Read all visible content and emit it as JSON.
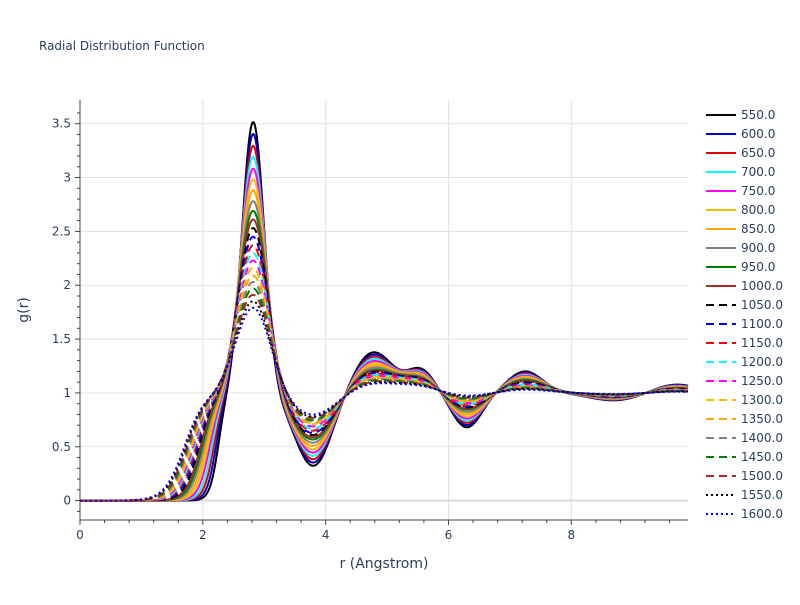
{
  "chart_data": {
    "type": "line",
    "title": "Radial Distribution Function",
    "xlabel": "r (Angstrom)",
    "ylabel": "g(r)",
    "xlim": [
      0,
      9.9
    ],
    "ylim": [
      -0.18,
      3.72
    ],
    "xticks": [
      0,
      2,
      4,
      6,
      8
    ],
    "xtick_labels": [
      "0",
      "2",
      "4",
      "6",
      "8"
    ],
    "yticks": [
      0,
      0.5,
      1,
      1.5,
      2,
      2.5,
      3,
      3.5
    ],
    "ytick_labels": [
      "0",
      "0.5",
      "1",
      "1.5",
      "2",
      "2.5",
      "3",
      "3.5"
    ],
    "grid": true,
    "legend_position": "right",
    "series": [
      {
        "name": "550.0",
        "color": "#000000",
        "dash": "solid",
        "peak1": 3.52,
        "min1": 0.32,
        "peak2": 1.38,
        "min2": 0.68,
        "peak3": 1.2
      },
      {
        "name": "600.0",
        "color": "#0000cc",
        "dash": "solid",
        "peak1": 3.41,
        "min1": 0.35,
        "peak2": 1.36,
        "min2": 0.7,
        "peak3": 1.19
      },
      {
        "name": "650.0",
        "color": "#e00000",
        "dash": "solid",
        "peak1": 3.3,
        "min1": 0.38,
        "peak2": 1.34,
        "min2": 0.72,
        "peak3": 1.18
      },
      {
        "name": "700.0",
        "color": "#00ffff",
        "dash": "solid",
        "peak1": 3.2,
        "min1": 0.41,
        "peak2": 1.32,
        "min2": 0.74,
        "peak3": 1.17
      },
      {
        "name": "750.0",
        "color": "#ff00ff",
        "dash": "solid",
        "peak1": 3.09,
        "min1": 0.44,
        "peak2": 1.3,
        "min2": 0.76,
        "peak3": 1.16
      },
      {
        "name": "800.0",
        "color": "#f0c000",
        "dash": "solid",
        "peak1": 2.99,
        "min1": 0.47,
        "peak2": 1.28,
        "min2": 0.78,
        "peak3": 1.15
      },
      {
        "name": "850.0",
        "color": "#ffa500",
        "dash": "solid",
        "peak1": 2.89,
        "min1": 0.5,
        "peak2": 1.26,
        "min2": 0.8,
        "peak3": 1.14
      },
      {
        "name": "900.0",
        "color": "#808080",
        "dash": "solid",
        "peak1": 2.79,
        "min1": 0.53,
        "peak2": 1.24,
        "min2": 0.82,
        "peak3": 1.13
      },
      {
        "name": "950.0",
        "color": "#008000",
        "dash": "solid",
        "peak1": 2.7,
        "min1": 0.56,
        "peak2": 1.22,
        "min2": 0.84,
        "peak3": 1.12
      },
      {
        "name": "1000.0",
        "color": "#a52a2a",
        "dash": "solid",
        "peak1": 2.62,
        "min1": 0.58,
        "peak2": 1.21,
        "min2": 0.85,
        "peak3": 1.11
      },
      {
        "name": "1050.0",
        "color": "#000000",
        "dash": "dash",
        "peak1": 2.54,
        "min1": 0.6,
        "peak2": 1.2,
        "min2": 0.86,
        "peak3": 1.1
      },
      {
        "name": "1100.0",
        "color": "#0000ff",
        "dash": "dash",
        "peak1": 2.46,
        "min1": 0.62,
        "peak2": 1.19,
        "min2": 0.87,
        "peak3": 1.09
      },
      {
        "name": "1150.0",
        "color": "#ff0000",
        "dash": "dash",
        "peak1": 2.38,
        "min1": 0.64,
        "peak2": 1.18,
        "min2": 0.88,
        "peak3": 1.08
      },
      {
        "name": "1200.0",
        "color": "#00ffff",
        "dash": "dash",
        "peak1": 2.31,
        "min1": 0.66,
        "peak2": 1.17,
        "min2": 0.89,
        "peak3": 1.08
      },
      {
        "name": "1250.0",
        "color": "#ff00ff",
        "dash": "dash",
        "peak1": 2.24,
        "min1": 0.68,
        "peak2": 1.16,
        "min2": 0.9,
        "peak3": 1.07
      },
      {
        "name": "1300.0",
        "color": "#f0c000",
        "dash": "dash",
        "peak1": 2.17,
        "min1": 0.7,
        "peak2": 1.15,
        "min2": 0.91,
        "peak3": 1.06
      },
      {
        "name": "1350.0",
        "color": "#ffa500",
        "dash": "dash",
        "peak1": 2.1,
        "min1": 0.71,
        "peak2": 1.14,
        "min2": 0.92,
        "peak3": 1.06
      },
      {
        "name": "1400.0",
        "color": "#808080",
        "dash": "dash",
        "peak1": 2.04,
        "min1": 0.73,
        "peak2": 1.13,
        "min2": 0.93,
        "peak3": 1.05
      },
      {
        "name": "1450.0",
        "color": "#008000",
        "dash": "dash",
        "peak1": 1.98,
        "min1": 0.74,
        "peak2": 1.12,
        "min2": 0.94,
        "peak3": 1.05
      },
      {
        "name": "1500.0",
        "color": "#a52a2a",
        "dash": "dash",
        "peak1": 1.92,
        "min1": 0.76,
        "peak2": 1.11,
        "min2": 0.95,
        "peak3": 1.04
      },
      {
        "name": "1550.0",
        "color": "#000000",
        "dash": "dot",
        "peak1": 1.86,
        "min1": 0.77,
        "peak2": 1.1,
        "min2": 0.96,
        "peak3": 1.04
      },
      {
        "name": "1600.0",
        "color": "#0000ff",
        "dash": "dot",
        "peak1": 1.8,
        "min1": 0.79,
        "peak2": 1.09,
        "min2": 0.97,
        "peak3": 1.03
      }
    ]
  }
}
